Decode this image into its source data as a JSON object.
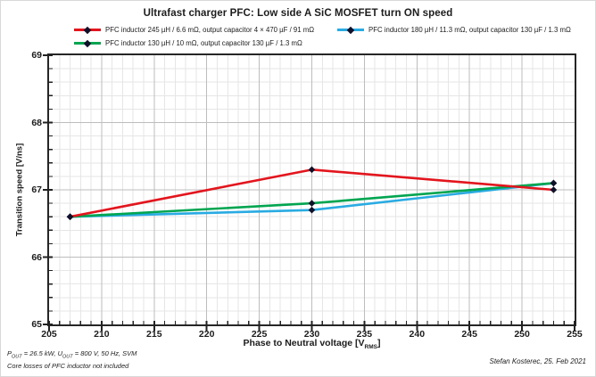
{
  "title": "Ultrafast charger PFC: Low side A SiC MOSFET turn ON speed",
  "legend": {
    "entries": [
      {
        "label": "PFC inductor 245 µH / 6.6 mΩ, output capacitor 4 × 470 µF / 91 mΩ",
        "color": "#e3151d"
      },
      {
        "label": "PFC inductor 180 µH / 11.3 mΩ, output capacitor 130 µF / 1.3 mΩ",
        "color": "#29abe2"
      },
      {
        "label": "PFC inductor 130 µH / 10 mΩ, output capacitor 130 µF / 1.3 mΩ",
        "color": "#00a550"
      }
    ]
  },
  "chart_data": {
    "type": "line",
    "title": "Ultrafast charger PFC: Low side A SiC MOSFET turn ON speed",
    "x": [
      207,
      230,
      253
    ],
    "series": [
      {
        "name": "PFC inductor 245 µH / 6.6 mΩ, output capacitor 4 × 470 µF / 91 mΩ",
        "color": "#e3151d",
        "values": [
          66.6,
          67.3,
          67.0
        ]
      },
      {
        "name": "PFC inductor 180 µH / 11.3 mΩ, output capacitor 130 µF / 1.3 mΩ",
        "color": "#29abe2",
        "values": [
          66.6,
          66.7,
          67.1
        ]
      },
      {
        "name": "PFC inductor 130 µH / 10 mΩ, output capacitor 130 µF / 1.3 mΩ",
        "color": "#00a550",
        "values": [
          66.6,
          66.8,
          67.1
        ]
      }
    ],
    "draw_order": [
      1,
      2,
      0
    ],
    "xlabel_main": "Phase to Neutral voltage [V",
    "xlabel_sub": "RMS",
    "xlabel_end": "]",
    "ylabel": "Transition speed [V/ns]",
    "xlim": [
      205,
      255
    ],
    "ylim": [
      65,
      69
    ],
    "xticks": [
      205,
      210,
      215,
      220,
      225,
      230,
      235,
      240,
      245,
      250,
      255
    ],
    "yticks": [
      65,
      66,
      67,
      68,
      69
    ],
    "x_minor_step": 1,
    "y_minor_step": 0.2,
    "grid": true,
    "legend_position": "top",
    "grid_minor_color": "#e6e6e6",
    "grid_major_color": "#bdbdbd",
    "axis_color": "#222222",
    "marker_color": "#10102a"
  },
  "footer": {
    "l1_p1": "P",
    "l1_sub1": "OUT",
    "l1_p2": " = 26.5 kW, U",
    "l1_sub2": "OUT",
    "l1_p3": " = 800 V, 50 Hz, SVM",
    "left_line2": "Core losses of PFC inductor not included",
    "right": "Stefan Kosterec, 25. Feb 2021"
  }
}
